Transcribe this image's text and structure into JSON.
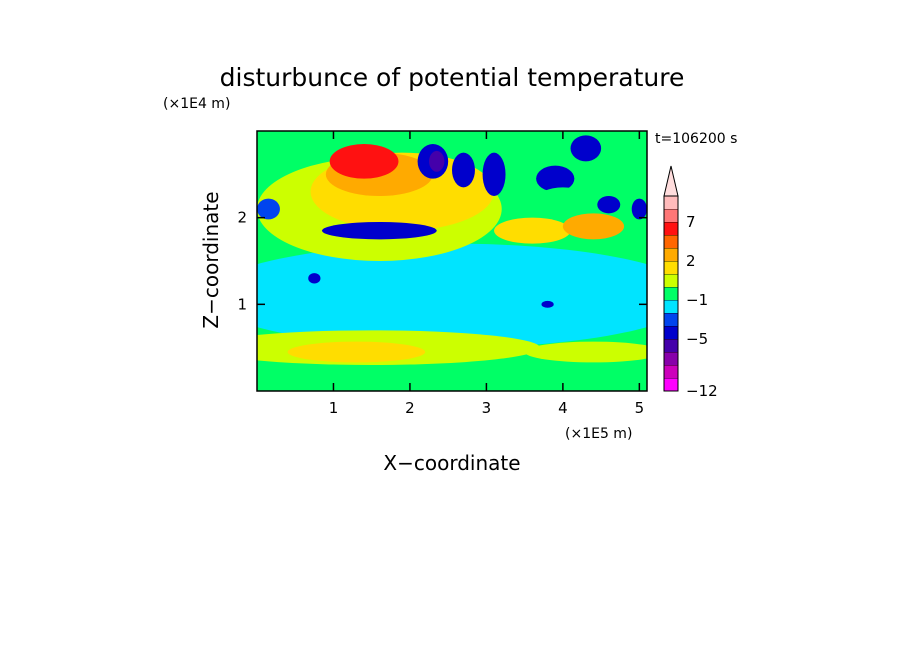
{
  "chart_data": {
    "type": "heatmap",
    "title": "disturbunce of potential temperature",
    "time_label": "t=106200 s",
    "xlabel": "X−coordinate",
    "ylabel": "Z−coordinate",
    "x_unit": "(×1E5 m)",
    "y_unit": "(×1E4 m)",
    "xlim": [
      0,
      5.1
    ],
    "ylim": [
      0,
      3.0
    ],
    "x_ticks": [
      "1",
      "2",
      "3",
      "4",
      "5"
    ],
    "x_tick_values": [
      1,
      2,
      3,
      4,
      5
    ],
    "y_ticks": [
      "1",
      "2"
    ],
    "y_tick_values": [
      1,
      2
    ],
    "grid": false,
    "colorbar": {
      "labels": [
        "−12",
        "−5",
        "−1",
        "2",
        "7"
      ],
      "bins": [
        {
          "color": "#ff00ff"
        },
        {
          "color": "#cc00bb"
        },
        {
          "color": "#8800aa"
        },
        {
          "color": "#4400aa"
        },
        {
          "color": "#0000cc"
        },
        {
          "color": "#0044ee"
        },
        {
          "color": "#00e4ff"
        },
        {
          "color": "#00ff66"
        },
        {
          "color": "#ccff00"
        },
        {
          "color": "#ffdd00"
        },
        {
          "color": "#ffaa00"
        },
        {
          "color": "#ff6600"
        },
        {
          "color": "#ff1111"
        },
        {
          "color": "#ff7777"
        },
        {
          "color": "#ffbbbb"
        }
      ],
      "extend_top_color": "#ffdddd"
    },
    "regions": [
      {
        "level": 6,
        "x": 2.55,
        "z": 1.1,
        "rx": 3.2,
        "rz": 0.6
      },
      {
        "level": 8,
        "x": 1.5,
        "z": 0.5,
        "rx": 2.2,
        "rz": 0.2
      },
      {
        "level": 8,
        "x": 4.4,
        "z": 0.45,
        "rx": 0.9,
        "rz": 0.12
      },
      {
        "level": 9,
        "x": 1.3,
        "z": 0.45,
        "rx": 0.9,
        "rz": 0.12
      },
      {
        "level": 8,
        "x": 1.6,
        "z": 2.1,
        "rx": 1.6,
        "rz": 0.6
      },
      {
        "level": 9,
        "x": 1.9,
        "z": 2.3,
        "rx": 1.2,
        "rz": 0.45
      },
      {
        "level": 10,
        "x": 1.6,
        "z": 2.5,
        "rx": 0.7,
        "rz": 0.25
      },
      {
        "level": 12,
        "x": 1.4,
        "z": 2.65,
        "rx": 0.45,
        "rz": 0.2
      },
      {
        "level": 4,
        "x": 1.6,
        "z": 1.85,
        "rx": 0.75,
        "rz": 0.1
      },
      {
        "level": 5,
        "x": 0.15,
        "z": 2.1,
        "rx": 0.15,
        "rz": 0.12
      },
      {
        "level": 4,
        "x": 2.3,
        "z": 2.65,
        "rx": 0.2,
        "rz": 0.2
      },
      {
        "level": 3,
        "x": 2.35,
        "z": 2.65,
        "rx": 0.1,
        "rz": 0.12
      },
      {
        "level": 4,
        "x": 2.7,
        "z": 2.55,
        "rx": 0.15,
        "rz": 0.2
      },
      {
        "level": 4,
        "x": 3.1,
        "z": 2.5,
        "rx": 0.15,
        "rz": 0.25
      },
      {
        "level": 4,
        "x": 3.9,
        "z": 2.45,
        "rx": 0.25,
        "rz": 0.15
      },
      {
        "level": 4,
        "x": 4.3,
        "z": 2.8,
        "rx": 0.2,
        "rz": 0.15
      },
      {
        "level": 4,
        "x": 4.6,
        "z": 2.15,
        "rx": 0.15,
        "rz": 0.1
      },
      {
        "level": 4,
        "x": 5.0,
        "z": 2.1,
        "rx": 0.1,
        "rz": 0.12
      },
      {
        "level": 9,
        "x": 3.6,
        "z": 1.85,
        "rx": 0.5,
        "rz": 0.15
      },
      {
        "level": 10,
        "x": 4.4,
        "z": 1.9,
        "rx": 0.4,
        "rz": 0.15
      },
      {
        "level": 7,
        "x": 4.0,
        "z": 2.2,
        "rx": 0.35,
        "rz": 0.15
      },
      {
        "level": 4,
        "x": 0.75,
        "z": 1.3,
        "rx": 0.08,
        "rz": 0.06
      },
      {
        "level": 4,
        "x": 3.8,
        "z": 1.0,
        "rx": 0.08,
        "rz": 0.04
      }
    ]
  }
}
